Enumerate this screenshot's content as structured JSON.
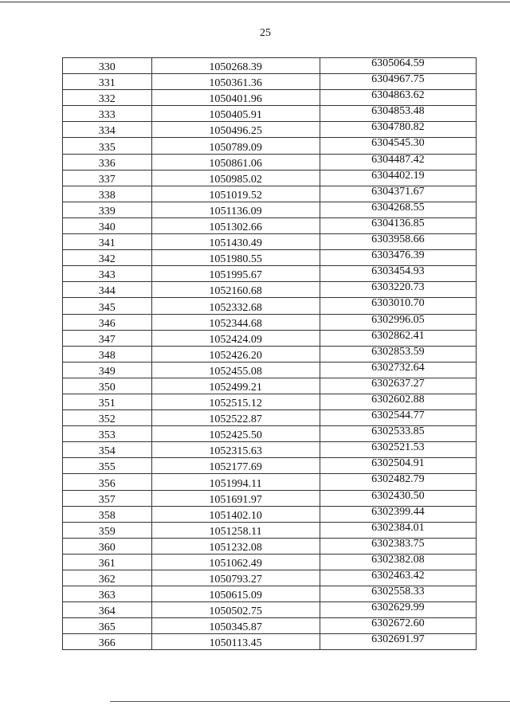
{
  "page_number": "25",
  "table": {
    "rows": [
      [
        "330",
        "1050268.39",
        "6305064.59"
      ],
      [
        "331",
        "1050361.36",
        "6304967.75"
      ],
      [
        "332",
        "1050401.96",
        "6304863.62"
      ],
      [
        "333",
        "1050405.91",
        "6304853.48"
      ],
      [
        "334",
        "1050496.25",
        "6304780.82"
      ],
      [
        "335",
        "1050789.09",
        "6304545.30"
      ],
      [
        "336",
        "1050861.06",
        "6304487.42"
      ],
      [
        "337",
        "1050985.02",
        "6304402.19"
      ],
      [
        "338",
        "1051019.52",
        "6304371.67"
      ],
      [
        "339",
        "1051136.09",
        "6304268.55"
      ],
      [
        "340",
        "1051302.66",
        "6304136.85"
      ],
      [
        "341",
        "1051430.49",
        "6303958.66"
      ],
      [
        "342",
        "1051980.55",
        "6303476.39"
      ],
      [
        "343",
        "1051995.67",
        "6303454.93"
      ],
      [
        "344",
        "1052160.68",
        "6303220.73"
      ],
      [
        "345",
        "1052332.68",
        "6303010.70"
      ],
      [
        "346",
        "1052344.68",
        "6302996.05"
      ],
      [
        "347",
        "1052424.09",
        "6302862.41"
      ],
      [
        "348",
        "1052426.20",
        "6302853.59"
      ],
      [
        "349",
        "1052455.08",
        "6302732.64"
      ],
      [
        "350",
        "1052499.21",
        "6302637.27"
      ],
      [
        "351",
        "1052515.12",
        "6302602.88"
      ],
      [
        "352",
        "1052522.87",
        "6302544.77"
      ],
      [
        "353",
        "1052425.50",
        "6302533.85"
      ],
      [
        "354",
        "1052315.63",
        "6302521.53"
      ],
      [
        "355",
        "1052177.69",
        "6302504.91"
      ],
      [
        "356",
        "1051994.11",
        "6302482.79"
      ],
      [
        "357",
        "1051691.97",
        "6302430.50"
      ],
      [
        "358",
        "1051402.10",
        "6302399.44"
      ],
      [
        "359",
        "1051258.11",
        "6302384.01"
      ],
      [
        "360",
        "1051232.08",
        "6302383.75"
      ],
      [
        "361",
        "1051062.49",
        "6302382.08"
      ],
      [
        "362",
        "1050793.27",
        "6302463.42"
      ],
      [
        "363",
        "1050615.09",
        "6302558.33"
      ],
      [
        "364",
        "1050502.75",
        "6302629.99"
      ],
      [
        "365",
        "1050345.87",
        "6302672.60"
      ],
      [
        "366",
        "1050113.45",
        "6302691.97"
      ]
    ]
  }
}
